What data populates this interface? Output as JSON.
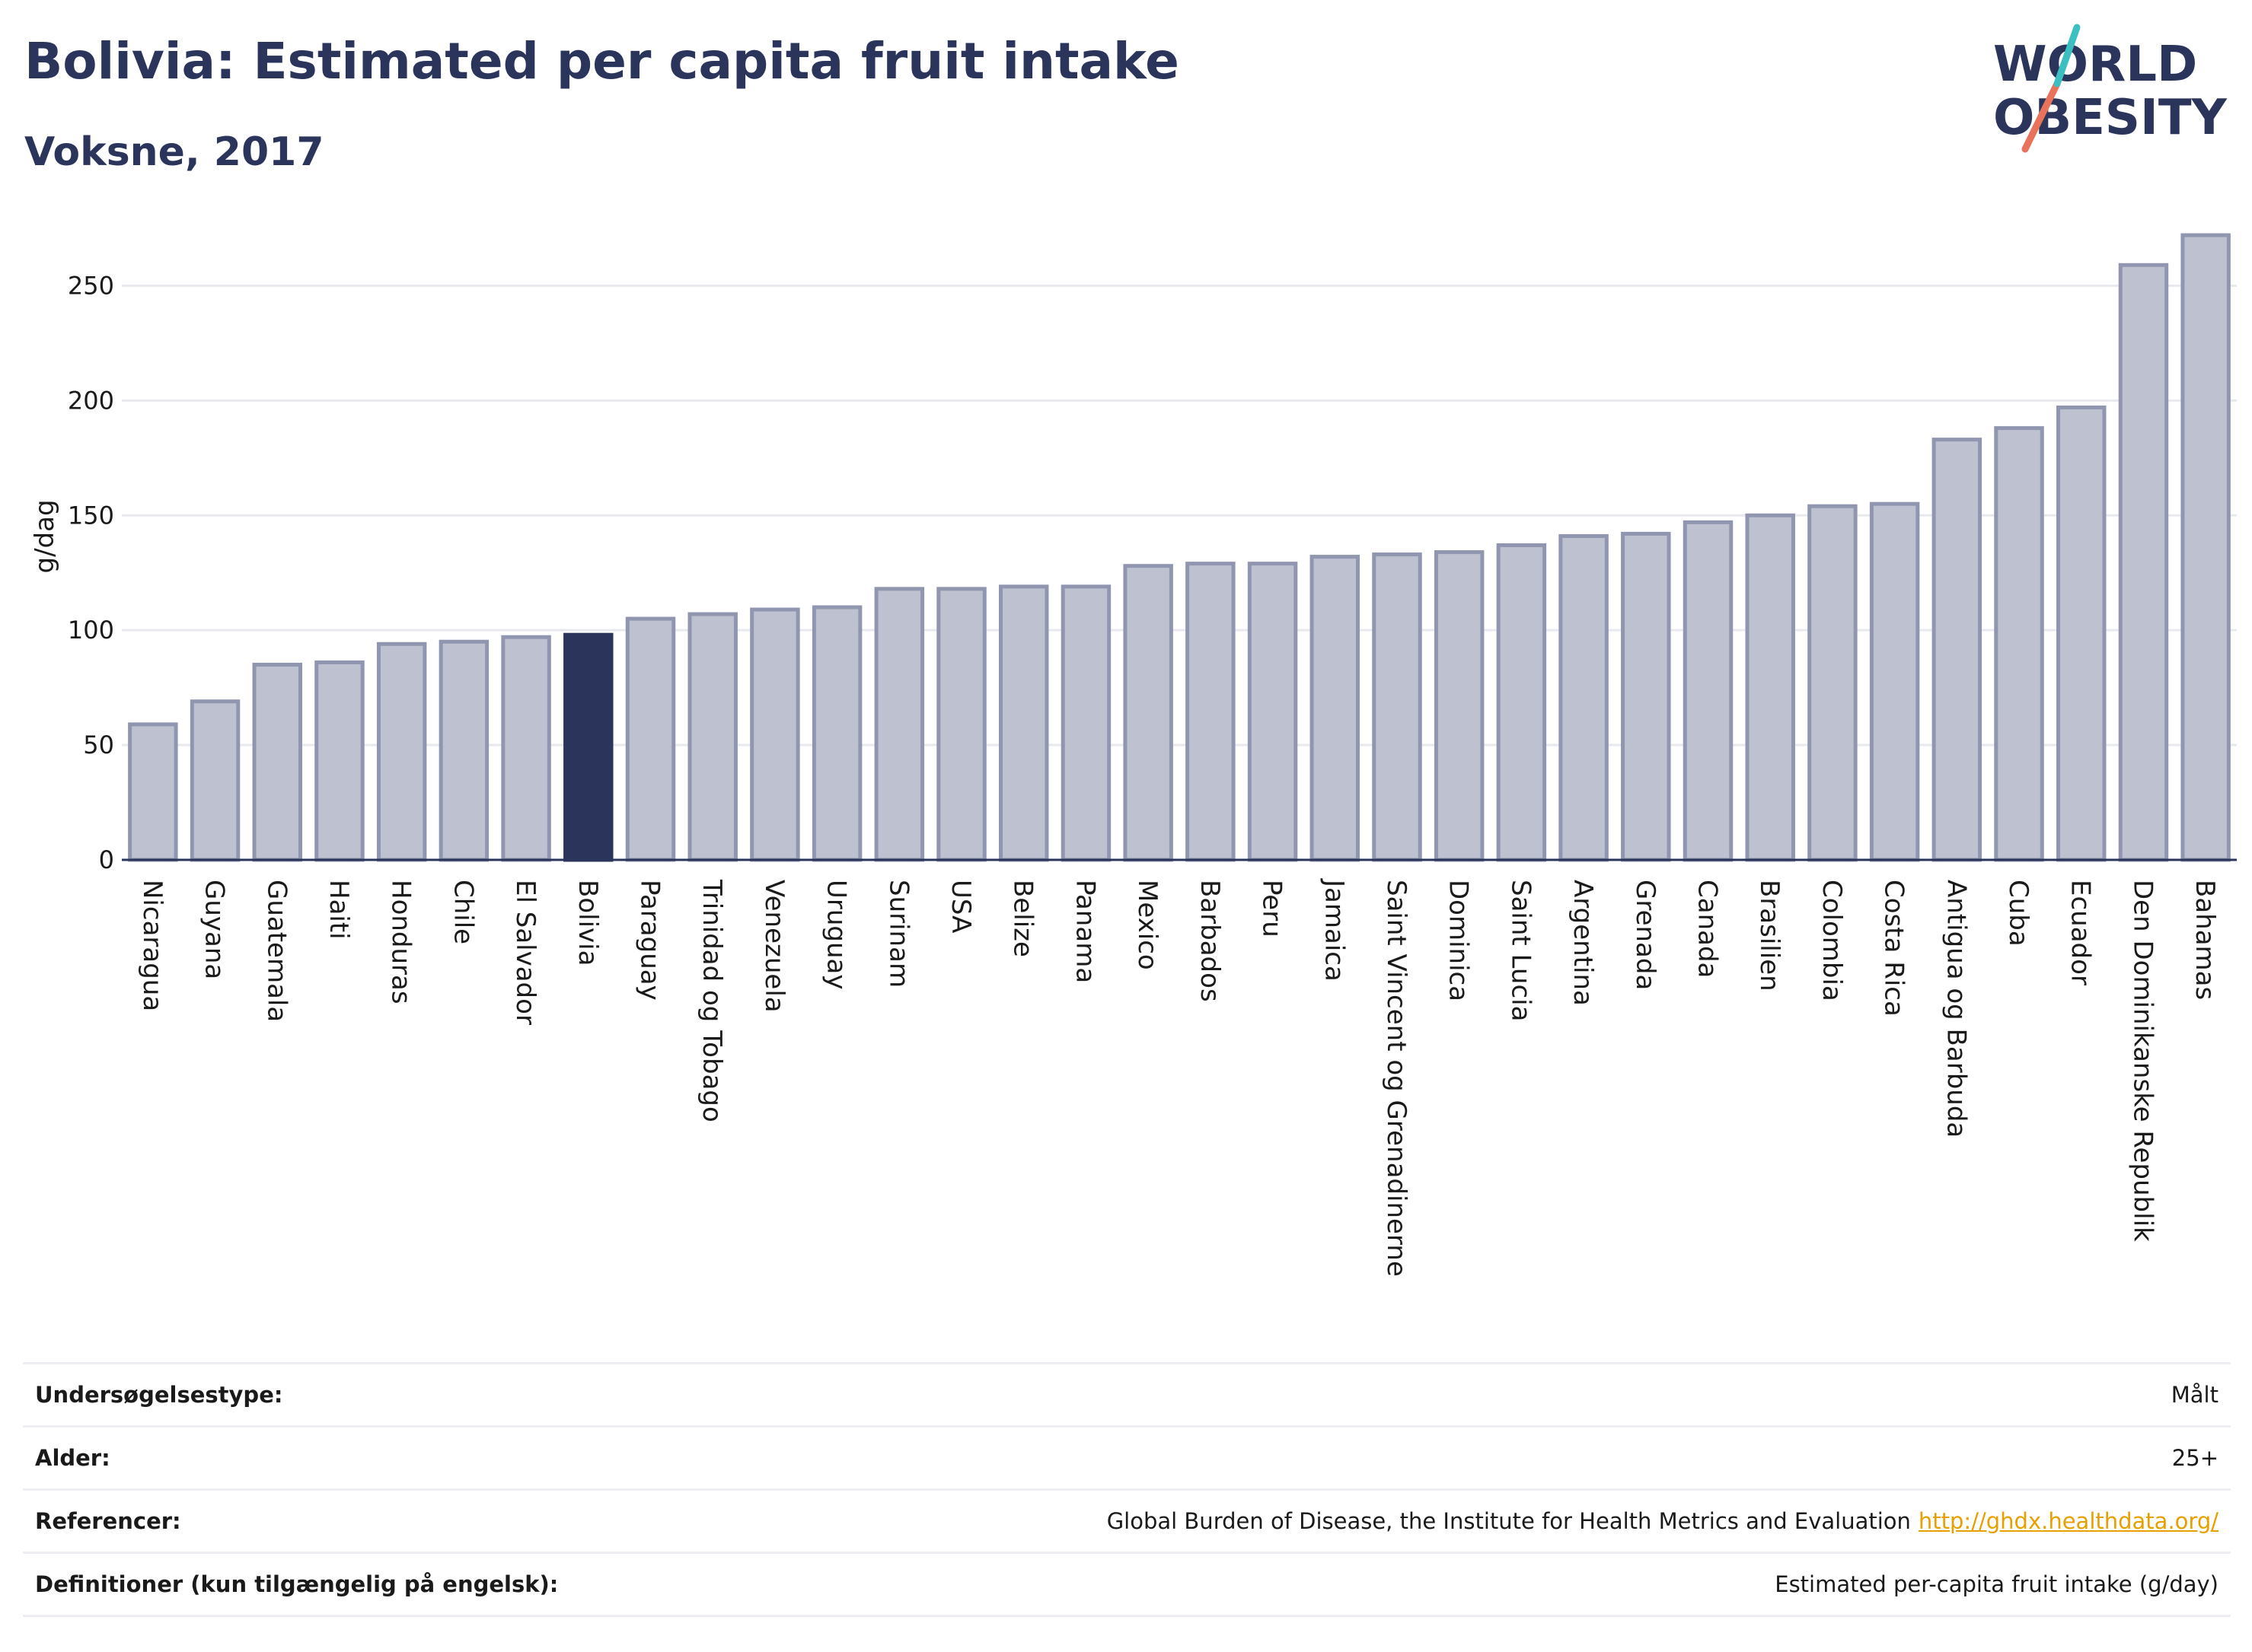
{
  "header": {
    "title": "Bolivia: Estimated per capita fruit intake",
    "subtitle": "Voksne, 2017"
  },
  "logo": {
    "line1": "WORLD",
    "line2": "OBESITY"
  },
  "colors": {
    "bar": "#bec1cf",
    "bar_stroke": "#9096b0",
    "highlight": "#2b355c",
    "grid": "#e8e9ee",
    "axis": "#2b355c"
  },
  "chart_data": {
    "type": "bar",
    "title": "Bolivia: Estimated per capita fruit intake",
    "subtitle": "Voksne, 2017",
    "xlabel": "",
    "ylabel": "g/dag",
    "ylim": [
      0,
      275
    ],
    "yticks": [
      0,
      50,
      100,
      150,
      200,
      250
    ],
    "grid": true,
    "highlight": "Bolivia",
    "categories": [
      "Nicaragua",
      "Guyana",
      "Guatemala",
      "Haiti",
      "Honduras",
      "Chile",
      "El Salvador",
      "Bolivia",
      "Paraguay",
      "Trinidad og Tobago",
      "Venezuela",
      "Uruguay",
      "Surinam",
      "USA",
      "Belize",
      "Panama",
      "Mexico",
      "Barbados",
      "Peru",
      "Jamaica",
      "Saint Vincent og Grenadinerne",
      "Dominica",
      "Saint Lucia",
      "Argentina",
      "Grenada",
      "Canada",
      "Brasilien",
      "Colombia",
      "Costa Rica",
      "Antigua og Barbuda",
      "Cuba",
      "Ecuador",
      "Den Dominikanske Republik",
      "Bahamas"
    ],
    "values": [
      59,
      69,
      85,
      86,
      94,
      95,
      97,
      98,
      105,
      107,
      109,
      110,
      118,
      118,
      119,
      119,
      128,
      129,
      129,
      132,
      133,
      134,
      137,
      141,
      142,
      147,
      150,
      154,
      155,
      183,
      188,
      197,
      259,
      272
    ]
  },
  "info": {
    "rows": [
      {
        "key": "Undersøgelsestype:",
        "value": "Målt"
      },
      {
        "key": "Alder:",
        "value": "25+"
      },
      {
        "key": "Referencer:",
        "value": "Global Burden of Disease, the Institute for Health Metrics and Evaluation",
        "link": "http://ghdx.healthdata.org/"
      },
      {
        "key": "Definitioner (kun tilgængelig på engelsk):",
        "value": "Estimated per-capita fruit intake (g/day)"
      }
    ]
  }
}
